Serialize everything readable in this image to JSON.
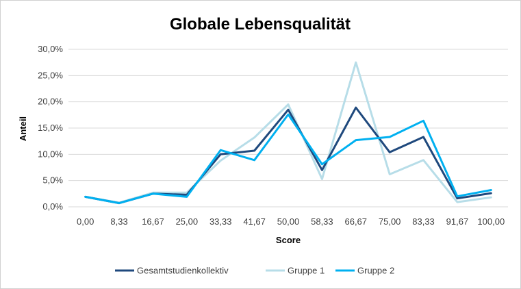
{
  "chart_data": {
    "type": "line",
    "title": "Globale Lebensqualität",
    "xlabel": "Score",
    "ylabel": "Anteil",
    "categories": [
      "0,00",
      "8,33",
      "16,67",
      "25,00",
      "33,33",
      "41,67",
      "50,00",
      "58,33",
      "66,67",
      "75,00",
      "83,33",
      "91,67",
      "100,00"
    ],
    "y_ticks": [
      "0,0%",
      "5,0%",
      "10,0%",
      "15,0%",
      "20,0%",
      "25,0%",
      "30,0%"
    ],
    "ylim": [
      0,
      30
    ],
    "grid": true,
    "legend_position": "bottom",
    "series": [
      {
        "name": "Gesamtstudienkollektiv",
        "color": "#1f497d",
        "values": [
          1.9,
          0.7,
          2.5,
          2.3,
          10.0,
          10.7,
          18.5,
          7.0,
          18.9,
          10.4,
          13.3,
          1.6,
          2.6
        ]
      },
      {
        "name": "Gruppe 1",
        "color": "#b7dde8",
        "values": [
          1.9,
          0.8,
          2.7,
          2.7,
          8.8,
          13.2,
          19.5,
          5.3,
          27.5,
          6.2,
          8.9,
          0.9,
          1.8
        ]
      },
      {
        "name": "Gruppe 2",
        "color": "#00b0f0",
        "values": [
          1.9,
          0.7,
          2.5,
          1.9,
          10.8,
          8.9,
          17.6,
          8.1,
          12.7,
          13.3,
          16.4,
          2.0,
          3.2
        ]
      }
    ]
  }
}
